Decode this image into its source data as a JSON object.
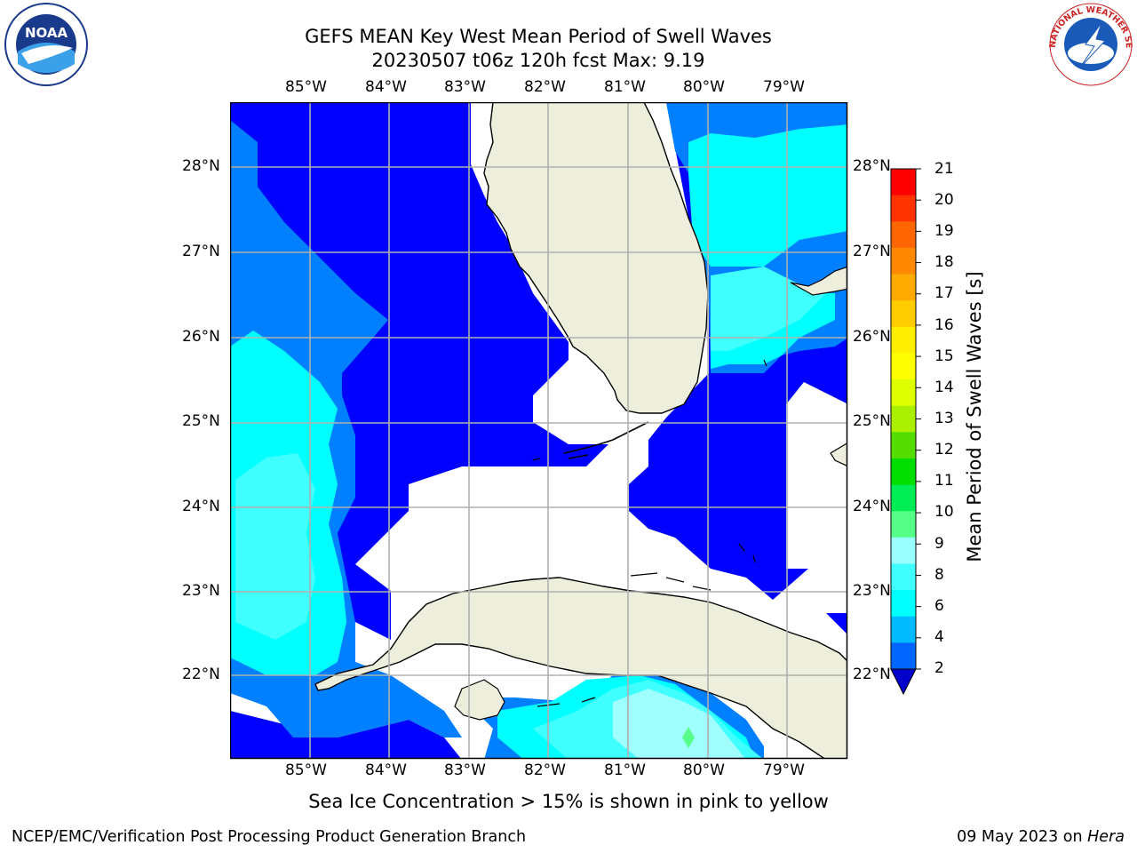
{
  "header": {
    "title_line1": "GEFS MEAN Key West Mean Period of Swell Waves",
    "title_line2": "20230507 t06z 120h fcst   Max: 9.19"
  },
  "map": {
    "lon_labels": [
      "85°W",
      "84°W",
      "83°W",
      "82°W",
      "81°W",
      "80°W",
      "79°W"
    ],
    "lat_labels": [
      "28°N",
      "27°N",
      "26°N",
      "25°N",
      "24°N",
      "23°N",
      "22°N"
    ],
    "colors": {
      "c2_4": "#0000ff",
      "c4_6": "#0080ff",
      "c6_7": "#00ffff",
      "c7_8": "#40ffff",
      "c8_9": "#9fffff",
      "land": "#eeeedc",
      "grid": "#b0b0b0"
    }
  },
  "colorbar": {
    "label": "Mean Period of Swell Waves [s]",
    "ticks": [
      "21",
      "20",
      "19",
      "18",
      "17",
      "16",
      "15",
      "14",
      "13",
      "12",
      "11",
      "10",
      "9",
      "8",
      "6",
      "4",
      "2"
    ],
    "segment_colors": [
      "#ff0000",
      "#ff3300",
      "#ff6600",
      "#ff8800",
      "#ffaa00",
      "#ffcc00",
      "#ffee00",
      "#ffff00",
      "#ddff00",
      "#aaee00",
      "#55dd00",
      "#00dd00",
      "#00ee55",
      "#55ff88",
      "#99ffff",
      "#40ffff",
      "#00ffff",
      "#00bbff",
      "#0066ff"
    ],
    "extend_color": "#0000cc"
  },
  "footer": {
    "ice_note": "Sea Ice Concentration > 15% is shown in pink to yellow",
    "left": "NCEP/EMC/Verification Post Processing Product Generation Branch",
    "date": "09 May 2023 on ",
    "machine": "Hera"
  },
  "logos": {
    "noaa_text": "NOAA",
    "nws_text": "NATIONAL WEATHER SERVICE"
  }
}
